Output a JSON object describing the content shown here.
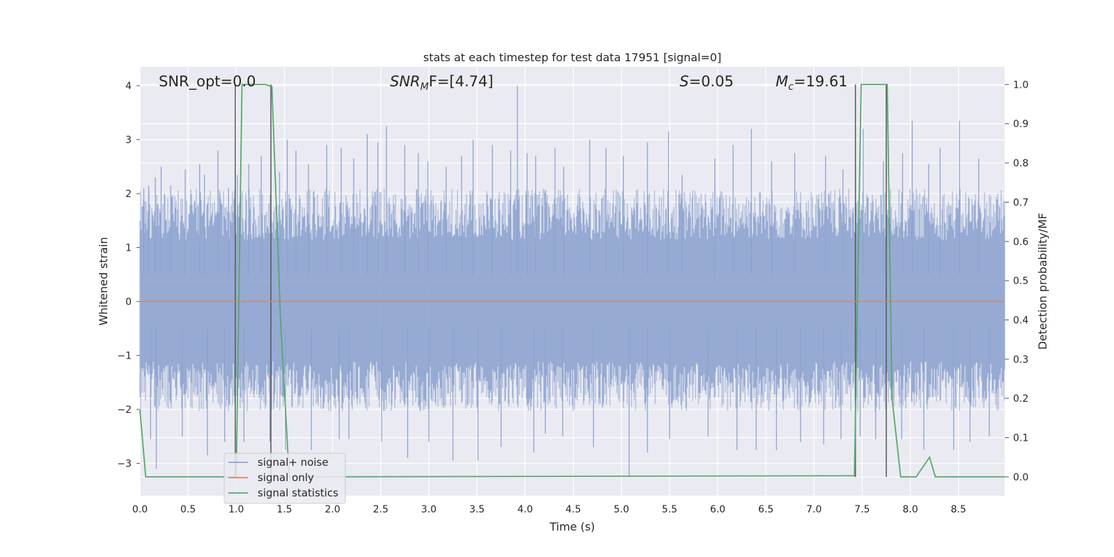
{
  "chart_data": {
    "type": "line",
    "title": "stats at each timestep for test data 17951 [signal=0]",
    "xlabel": "Time (s)",
    "ylabel_left": "Whitened strain",
    "ylabel_right": "Detection probability/MF",
    "xlim": [
      0.0,
      8.98
    ],
    "ylim_left": [
      -3.6,
      4.35
    ],
    "ylim_right": [
      -0.048,
      1.045
    ],
    "x_ticks": [
      "0.0",
      "0.5",
      "1.0",
      "1.5",
      "2.0",
      "2.5",
      "3.0",
      "3.5",
      "4.0",
      "4.5",
      "5.0",
      "5.5",
      "6.0",
      "6.5",
      "7.0",
      "7.5",
      "8.0",
      "8.5"
    ],
    "y_left_ticks": [
      "−3",
      "−2",
      "−1",
      "0",
      "1",
      "2",
      "3",
      "4"
    ],
    "y_right_ticks": [
      "0.0",
      "0.1",
      "0.2",
      "0.3",
      "0.4",
      "0.5",
      "0.6",
      "0.7",
      "0.8",
      "0.9",
      "1.0"
    ],
    "grid": true,
    "legend_position": "lower-left",
    "annotations": {
      "snr_opt": "SNR_opt=0.0",
      "snr_mf_base": "SNR",
      "snr_mf_sub": "M",
      "snr_mf_rest": "F=[4.74]",
      "s_sym": "S",
      "s_val": "=0.05",
      "mc_sym": "M",
      "mc_sub": "c",
      "mc_val": "=19.61"
    },
    "series": [
      {
        "name": "signal+ noise",
        "color": "#8da3cf",
        "description_noise_band": [
          -1.85,
          1.9
        ],
        "peaks": [
          [
            0.04,
            2.1
          ],
          [
            0.09,
            2.15
          ],
          [
            0.16,
            2.3
          ],
          [
            0.22,
            2.5
          ],
          [
            0.32,
            2.15
          ],
          [
            0.47,
            2.45
          ],
          [
            0.62,
            2.55
          ],
          [
            0.67,
            2.35
          ],
          [
            0.81,
            2.8
          ],
          [
            0.92,
            2.1
          ],
          [
            1.01,
            2.35
          ],
          [
            1.13,
            2.55
          ],
          [
            1.26,
            2.7
          ],
          [
            1.45,
            2.4
          ],
          [
            1.53,
            3.0
          ],
          [
            1.62,
            2.8
          ],
          [
            1.75,
            2.55
          ],
          [
            1.94,
            2.9
          ],
          [
            2.09,
            2.85
          ],
          [
            2.22,
            2.65
          ],
          [
            2.36,
            3.1
          ],
          [
            2.47,
            2.95
          ],
          [
            2.56,
            3.25
          ],
          [
            2.75,
            2.9
          ],
          [
            2.89,
            2.75
          ],
          [
            2.99,
            2.6
          ],
          [
            3.18,
            2.5
          ],
          [
            3.34,
            2.7
          ],
          [
            3.46,
            3.0
          ],
          [
            3.66,
            2.9
          ],
          [
            3.85,
            2.8
          ],
          [
            3.92,
            4.0
          ],
          [
            4.02,
            2.75
          ],
          [
            4.11,
            2.7
          ],
          [
            4.31,
            2.85
          ],
          [
            4.4,
            2.5
          ],
          [
            4.67,
            3.0
          ],
          [
            4.84,
            2.85
          ],
          [
            5.02,
            2.7
          ],
          [
            5.27,
            2.95
          ],
          [
            5.49,
            3.15
          ],
          [
            5.63,
            2.35
          ],
          [
            5.97,
            2.65
          ],
          [
            6.16,
            2.9
          ],
          [
            6.35,
            3.2
          ],
          [
            6.56,
            2.6
          ],
          [
            6.8,
            2.75
          ],
          [
            7.12,
            2.7
          ],
          [
            7.3,
            2.45
          ],
          [
            7.51,
            3.2
          ],
          [
            7.72,
            2.6
          ],
          [
            7.92,
            2.75
          ],
          [
            8.02,
            3.35
          ],
          [
            8.19,
            2.55
          ],
          [
            8.31,
            2.85
          ],
          [
            8.51,
            3.35
          ],
          [
            8.71,
            2.65
          ]
        ],
        "troughs": [
          [
            0.11,
            -2.55
          ],
          [
            0.17,
            -3.1
          ],
          [
            0.44,
            -2.5
          ],
          [
            0.7,
            -2.85
          ],
          [
            0.88,
            -2.6
          ],
          [
            1.08,
            -2.6
          ],
          [
            1.35,
            -2.6
          ],
          [
            1.51,
            -2.75
          ],
          [
            1.78,
            -2.75
          ],
          [
            2.07,
            -2.55
          ],
          [
            2.17,
            -2.55
          ],
          [
            2.51,
            -2.6
          ],
          [
            2.78,
            -2.9
          ],
          [
            3.0,
            -2.6
          ],
          [
            3.25,
            -2.95
          ],
          [
            3.51,
            -2.95
          ],
          [
            3.75,
            -2.7
          ],
          [
            4.09,
            -2.8
          ],
          [
            4.21,
            -2.45
          ],
          [
            4.39,
            -2.5
          ],
          [
            4.71,
            -2.7
          ],
          [
            5.08,
            -3.25
          ],
          [
            5.27,
            -2.8
          ],
          [
            5.5,
            -2.55
          ],
          [
            5.9,
            -2.5
          ],
          [
            6.2,
            -2.75
          ],
          [
            6.4,
            -2.75
          ],
          [
            6.61,
            -2.75
          ],
          [
            6.86,
            -2.6
          ],
          [
            7.1,
            -2.65
          ],
          [
            7.28,
            -2.55
          ],
          [
            7.48,
            -2.5
          ],
          [
            7.64,
            -2.55
          ],
          [
            7.91,
            -2.55
          ],
          [
            8.14,
            -2.75
          ],
          [
            8.45,
            -2.75
          ],
          [
            8.62,
            -2.6
          ],
          [
            8.82,
            -2.5
          ]
        ]
      },
      {
        "name": "signal only",
        "color": "#dd8452",
        "x": [
          0.0,
          8.98
        ],
        "y": [
          0.0,
          0.0
        ]
      },
      {
        "name": "signal statistics",
        "color": "#55a868",
        "axis": "right",
        "x": [
          0.0,
          0.06,
          0.12,
          1.0,
          1.06,
          1.3,
          1.37,
          1.46,
          1.55,
          7.42,
          7.49,
          7.76,
          7.81,
          7.9,
          8.06,
          8.2,
          8.26,
          8.98
        ],
        "y": [
          0.17,
          0.0,
          0.0,
          0.0,
          1.0,
          1.0,
          0.995,
          0.4,
          0.0,
          0.003,
          1.0,
          1.0,
          0.2,
          0.0,
          0.0,
          0.05,
          0.0,
          0.0
        ]
      }
    ],
    "vertical_markers": [
      {
        "x": 0.99,
        "top": 1.0,
        "bottom": 0.0
      },
      {
        "x": 1.36,
        "top": 1.0,
        "bottom": 0.0
      },
      {
        "x": 7.43,
        "top": 1.0,
        "bottom": 0.0
      },
      {
        "x": 7.75,
        "top": 1.0,
        "bottom": 0.0
      }
    ]
  }
}
